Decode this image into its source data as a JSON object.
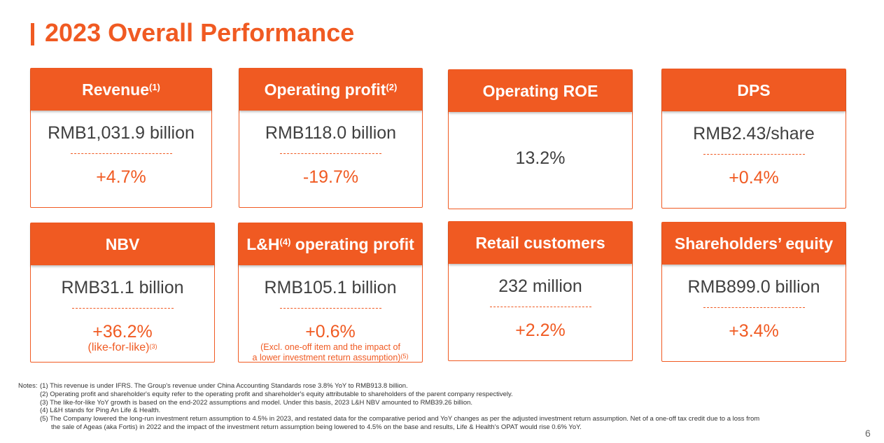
{
  "title": "2023 Overall Performance",
  "colors": {
    "accent": "#f05a22",
    "text": "#404040"
  },
  "cards": [
    {
      "head": "Revenue",
      "sup": "(1)",
      "value": "RMB1,031.9 billion",
      "change": "+4.7%"
    },
    {
      "head": "Operating profit",
      "sup": "(2)",
      "value": "RMB118.0 billion",
      "change": "-19.7%"
    },
    {
      "head": "Operating ROE",
      "value": "13.2%"
    },
    {
      "head": "DPS",
      "value": "RMB2.43/share",
      "change": "+0.4%"
    },
    {
      "head": "NBV",
      "value": "RMB31.1 billion",
      "change": "+36.2%",
      "sub": "(like-for-like)",
      "sub_sup": "(3)"
    },
    {
      "head_pre": "L&H",
      "head_sup": "(4)",
      "head_post": " operating profit",
      "value": "RMB105.1 billion",
      "change": "+0.6%",
      "sub_line1": "(Excl. one-off item and the impact of",
      "sub_line2": "a lower investment return assumption)",
      "sub_sup": "(5)"
    },
    {
      "head": "Retail customers",
      "value": "232 million",
      "change": "+2.2%"
    },
    {
      "head": "Shareholders’ equity",
      "value": "RMB899.0 billion",
      "change": "+3.4%"
    }
  ],
  "notes": {
    "lead": "Notes:",
    "items": [
      "(1) This revenue is under IFRS. The Group's revenue under China Accounting Standards rose 3.8% YoY to RMB913.8 billion.",
      "(2) Operating profit and shareholder's equity refer to the operating profit and shareholder's equity attributable to shareholders of the parent company respectively.",
      "(3) The like-for-like YoY growth is based on the end-2022 assumptions and model. Under this basis, 2023 L&H NBV amounted to RMB39.26 billion.",
      "(4) L&H stands for Ping An Life & Health.",
      "(5) The Company lowered the long-run investment return assumption to 4.5% in 2023, and restated data for the comparative period and YoY changes as per the adjusted investment return assumption. Net of a one-off tax credit due to a loss from",
      "the sale of Ageas (aka Fortis) in 2022 and the impact of the investment return assumption being lowered to 4.5% on the base and results, Life & Health's OPAT would rise 0.6% YoY."
    ]
  },
  "page_number": "6"
}
